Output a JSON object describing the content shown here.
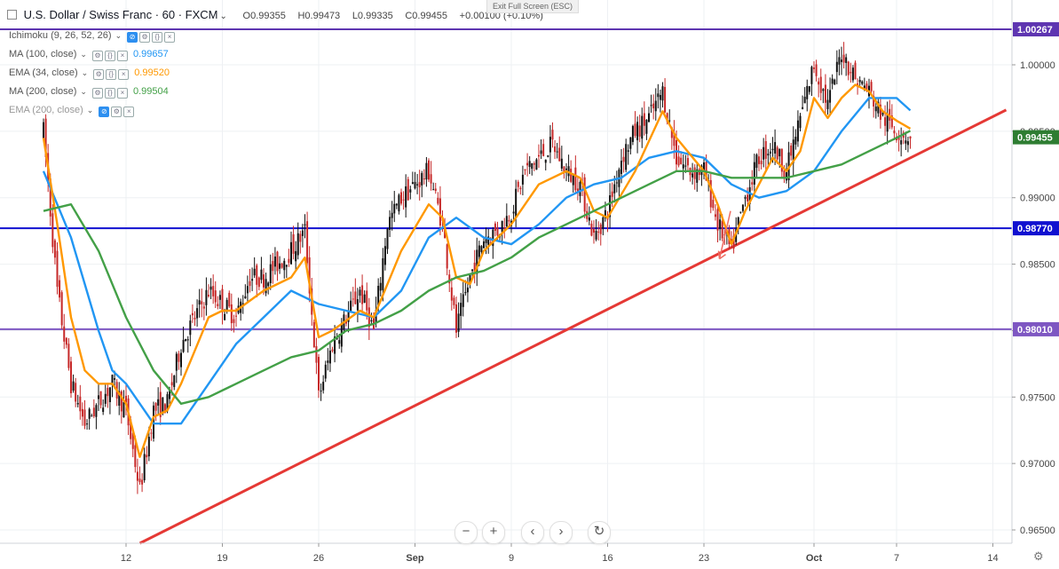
{
  "header": {
    "symbol": "U.S. Dollar / Swiss Franc · 60 · FXCM",
    "open": "O0.99355",
    "high": "H0.99473",
    "low": "L0.99335",
    "close": "C0.99455",
    "change": "+0.00100 (+0.10%)",
    "tooltip": "Exit Full Screen (ESC)"
  },
  "indicators": [
    {
      "name": "Ichimoku (9, 26, 52, 26)",
      "value": "",
      "color": "#888888",
      "hidden": false
    },
    {
      "name": "MA (100, close)",
      "value": "0.99657",
      "color": "#2196f3",
      "hidden": false
    },
    {
      "name": "EMA (34, close)",
      "value": "0.99520",
      "color": "#ff9800",
      "hidden": false
    },
    {
      "name": "MA (200, close)",
      "value": "0.99504",
      "color": "#43a047",
      "hidden": false
    },
    {
      "name": "EMA (200, close)",
      "value": "",
      "color": "#999999",
      "hidden": true
    }
  ],
  "controls": {
    "zoom_out": "−",
    "zoom_in": "+",
    "scroll_left": "‹",
    "scroll_right": "›",
    "reset": "↻",
    "settings_icon": "gear-icon"
  },
  "colors": {
    "up": "#26a69a",
    "down": "#ef5350",
    "candle": "#111111",
    "candle_down": "#c62828",
    "ma100": "#2196f3",
    "ema34": "#ff9800",
    "ma200": "#43a047",
    "trendline": "#e53935",
    "h_blue": "#1010d0",
    "h_purple": "#7e57c2"
  },
  "chart_data": {
    "type": "candlestick",
    "x_ticks": [
      "12",
      "19",
      "26",
      "Sep",
      "9",
      "16",
      "23",
      "Oct",
      "7",
      "14"
    ],
    "y_ticks": [
      "1.00000",
      "0.99500",
      "0.99000",
      "0.98500",
      "0.98000",
      "0.97500",
      "0.97000",
      "0.96500"
    ],
    "ylim": [
      0.964,
      1.004
    ],
    "price_labels": [
      {
        "label": "1.00267",
        "value": 1.00267,
        "color": "#5e35b1"
      },
      {
        "label": "0.99455",
        "value": 0.99455,
        "color": "#2e7d32"
      },
      {
        "label": "0.98770",
        "value": 0.9877,
        "color": "#1010d0"
      },
      {
        "label": "0.98010",
        "value": 0.9801,
        "color": "#7e57c2"
      }
    ],
    "horizontal_lines": [
      {
        "value": 1.00267,
        "color": "#5e35b1"
      },
      {
        "value": 0.9877,
        "color": "#1010d0"
      },
      {
        "value": 0.9801,
        "color": "#7e57c2"
      }
    ],
    "trendline": {
      "from": [
        "Aug 13",
        0.964
      ],
      "to": [
        "Oct 8",
        0.9954
      ]
    },
    "arrow": {
      "from": [
        "Sep 23",
        0.989
      ],
      "to": [
        "Sep 24",
        0.9854
      ]
    },
    "close_path": [
      [
        "Aug 6",
        0.995
      ],
      [
        "Aug 7",
        0.983
      ],
      [
        "Aug 8",
        0.976
      ],
      [
        "Aug 9",
        0.973
      ],
      [
        "Aug 10",
        0.9745
      ],
      [
        "Aug 11",
        0.976
      ],
      [
        "Aug 12",
        0.974
      ],
      [
        "Aug 13",
        0.968
      ],
      [
        "Aug 14",
        0.974
      ],
      [
        "Aug 15",
        0.9745
      ],
      [
        "Aug 16",
        0.979
      ],
      [
        "Aug 17",
        0.981
      ],
      [
        "Aug 18",
        0.983
      ],
      [
        "Aug 19",
        0.982
      ],
      [
        "Aug 20",
        0.981
      ],
      [
        "Aug 21",
        0.984
      ],
      [
        "Aug 22",
        0.984
      ],
      [
        "Aug 23",
        0.985
      ],
      [
        "Aug 24",
        0.986
      ],
      [
        "Aug 25",
        0.9875
      ],
      [
        "Aug 26",
        0.975
      ],
      [
        "Aug 27",
        0.979
      ],
      [
        "Aug 28",
        0.981
      ],
      [
        "Aug 29",
        0.983
      ],
      [
        "Aug 30",
        0.98
      ],
      [
        "Aug 31",
        0.988
      ],
      [
        "Sep 1",
        0.99
      ],
      [
        "Sep 2",
        0.991
      ],
      [
        "Sep 3",
        0.992
      ],
      [
        "Sep 4",
        0.988
      ],
      [
        "Sep 5",
        0.98
      ],
      [
        "Sep 6",
        0.984
      ],
      [
        "Sep 7",
        0.987
      ],
      [
        "Sep 8",
        0.9875
      ],
      [
        "Sep 9",
        0.989
      ],
      [
        "Sep 10",
        0.992
      ],
      [
        "Sep 11",
        0.993
      ],
      [
        "Sep 12",
        0.994
      ],
      [
        "Sep 13",
        0.992
      ],
      [
        "Sep 14",
        0.991
      ],
      [
        "Sep 15",
        0.987
      ],
      [
        "Sep 16",
        0.989
      ],
      [
        "Sep 17",
        0.993
      ],
      [
        "Sep 18",
        0.995
      ],
      [
        "Sep 19",
        0.996
      ],
      [
        "Sep 20",
        0.998
      ],
      [
        "Sep 21",
        0.993
      ],
      [
        "Sep 22",
        0.992
      ],
      [
        "Sep 23",
        0.992
      ],
      [
        "Sep 24",
        0.988
      ],
      [
        "Sep 25",
        0.986
      ],
      [
        "Sep 26",
        0.99
      ],
      [
        "Sep 27",
        0.993
      ],
      [
        "Sep 28",
        0.994
      ],
      [
        "Sep 29",
        0.992
      ],
      [
        "Sep 30",
        0.996
      ],
      [
        "Oct 1",
        1.0
      ],
      [
        "Oct 2",
        0.997
      ],
      [
        "Oct 3",
        1.001
      ],
      [
        "Oct 4",
        0.999
      ],
      [
        "Oct 5",
        0.998
      ],
      [
        "Oct 6",
        0.996
      ],
      [
        "Oct 7",
        0.995
      ],
      [
        "Oct 8",
        0.99455
      ]
    ],
    "series": [
      {
        "name": "MA (100, close)",
        "color": "#2196f3",
        "values": [
          [
            "Aug 6",
            0.992
          ],
          [
            "Aug 8",
            0.987
          ],
          [
            "Aug 10",
            0.98
          ],
          [
            "Aug 11",
            0.977
          ],
          [
            "Aug 12",
            0.976
          ],
          [
            "Aug 14",
            0.973
          ],
          [
            "Aug 16",
            0.973
          ],
          [
            "Aug 18",
            0.976
          ],
          [
            "Aug 20",
            0.979
          ],
          [
            "Aug 22",
            0.981
          ],
          [
            "Aug 24",
            0.983
          ],
          [
            "Aug 26",
            0.982
          ],
          [
            "Aug 28",
            0.9815
          ],
          [
            "Aug 30",
            0.981
          ],
          [
            "Sep 1",
            0.983
          ],
          [
            "Sep 3",
            0.987
          ],
          [
            "Sep 5",
            0.9885
          ],
          [
            "Sep 7",
            0.987
          ],
          [
            "Sep 9",
            0.9865
          ],
          [
            "Sep 11",
            0.988
          ],
          [
            "Sep 13",
            0.99
          ],
          [
            "Sep 15",
            0.991
          ],
          [
            "Sep 17",
            0.9915
          ],
          [
            "Sep 19",
            0.993
          ],
          [
            "Sep 21",
            0.9935
          ],
          [
            "Sep 23",
            0.993
          ],
          [
            "Sep 25",
            0.991
          ],
          [
            "Sep 27",
            0.99
          ],
          [
            "Sep 29",
            0.9905
          ],
          [
            "Oct 1",
            0.992
          ],
          [
            "Oct 3",
            0.995
          ],
          [
            "Oct 5",
            0.9975
          ],
          [
            "Oct 7",
            0.9975
          ],
          [
            "Oct 8",
            0.99657
          ]
        ]
      },
      {
        "name": "EMA (34, close)",
        "color": "#ff9800",
        "values": [
          [
            "Aug 6",
            0.9945
          ],
          [
            "Aug 7",
            0.988
          ],
          [
            "Aug 8",
            0.981
          ],
          [
            "Aug 9",
            0.977
          ],
          [
            "Aug 10",
            0.976
          ],
          [
            "Aug 11",
            0.976
          ],
          [
            "Aug 12",
            0.9745
          ],
          [
            "Aug 13",
            0.9705
          ],
          [
            "Aug 14",
            0.9735
          ],
          [
            "Aug 15",
            0.974
          ],
          [
            "Aug 16",
            0.976
          ],
          [
            "Aug 17",
            0.9785
          ],
          [
            "Aug 18",
            0.981
          ],
          [
            "Aug 19",
            0.9815
          ],
          [
            "Aug 20",
            0.9815
          ],
          [
            "Aug 22",
            0.983
          ],
          [
            "Aug 24",
            0.984
          ],
          [
            "Aug 25",
            0.9855
          ],
          [
            "Aug 26",
            0.9795
          ],
          [
            "Aug 27",
            0.98
          ],
          [
            "Aug 29",
            0.9815
          ],
          [
            "Aug 30",
            0.981
          ],
          [
            "Sep 1",
            0.986
          ],
          [
            "Sep 3",
            0.9895
          ],
          [
            "Sep 4",
            0.9885
          ],
          [
            "Sep 5",
            0.984
          ],
          [
            "Sep 6",
            0.9835
          ],
          [
            "Sep 7",
            0.986
          ],
          [
            "Sep 9",
            0.988
          ],
          [
            "Sep 11",
            0.991
          ],
          [
            "Sep 13",
            0.992
          ],
          [
            "Sep 14",
            0.9915
          ],
          [
            "Sep 15",
            0.989
          ],
          [
            "Sep 16",
            0.9885
          ],
          [
            "Sep 18",
            0.992
          ],
          [
            "Sep 20",
            0.9965
          ],
          [
            "Sep 21",
            0.9945
          ],
          [
            "Sep 23",
            0.992
          ],
          [
            "Sep 24",
            0.9895
          ],
          [
            "Sep 25",
            0.9865
          ],
          [
            "Sep 26",
            0.989
          ],
          [
            "Sep 28",
            0.993
          ],
          [
            "Sep 29",
            0.992
          ],
          [
            "Sep 30",
            0.9935
          ],
          [
            "Oct 1",
            0.9975
          ],
          [
            "Oct 2",
            0.996
          ],
          [
            "Oct 3",
            0.9975
          ],
          [
            "Oct 4",
            0.9985
          ],
          [
            "Oct 5",
            0.998
          ],
          [
            "Oct 6",
            0.9965
          ],
          [
            "Oct 7",
            0.9958
          ],
          [
            "Oct 8",
            0.9952
          ]
        ]
      },
      {
        "name": "MA (200, close)",
        "color": "#43a047",
        "values": [
          [
            "Aug 6",
            0.989
          ],
          [
            "Aug 8",
            0.9895
          ],
          [
            "Aug 10",
            0.986
          ],
          [
            "Aug 12",
            0.981
          ],
          [
            "Aug 14",
            0.977
          ],
          [
            "Aug 16",
            0.9745
          ],
          [
            "Aug 18",
            0.975
          ],
          [
            "Aug 20",
            0.976
          ],
          [
            "Aug 22",
            0.977
          ],
          [
            "Aug 24",
            0.978
          ],
          [
            "Aug 26",
            0.9785
          ],
          [
            "Aug 28",
            0.98
          ],
          [
            "Aug 30",
            0.9805
          ],
          [
            "Sep 1",
            0.9815
          ],
          [
            "Sep 3",
            0.983
          ],
          [
            "Sep 5",
            0.984
          ],
          [
            "Sep 7",
            0.9845
          ],
          [
            "Sep 9",
            0.9855
          ],
          [
            "Sep 11",
            0.987
          ],
          [
            "Sep 13",
            0.988
          ],
          [
            "Sep 15",
            0.989
          ],
          [
            "Sep 17",
            0.99
          ],
          [
            "Sep 19",
            0.991
          ],
          [
            "Sep 21",
            0.992
          ],
          [
            "Sep 23",
            0.992
          ],
          [
            "Sep 25",
            0.9915
          ],
          [
            "Sep 27",
            0.9915
          ],
          [
            "Sep 29",
            0.9915
          ],
          [
            "Oct 1",
            0.992
          ],
          [
            "Oct 3",
            0.9925
          ],
          [
            "Oct 5",
            0.9935
          ],
          [
            "Oct 7",
            0.9945
          ],
          [
            "Oct 8",
            0.99504
          ]
        ]
      }
    ]
  }
}
